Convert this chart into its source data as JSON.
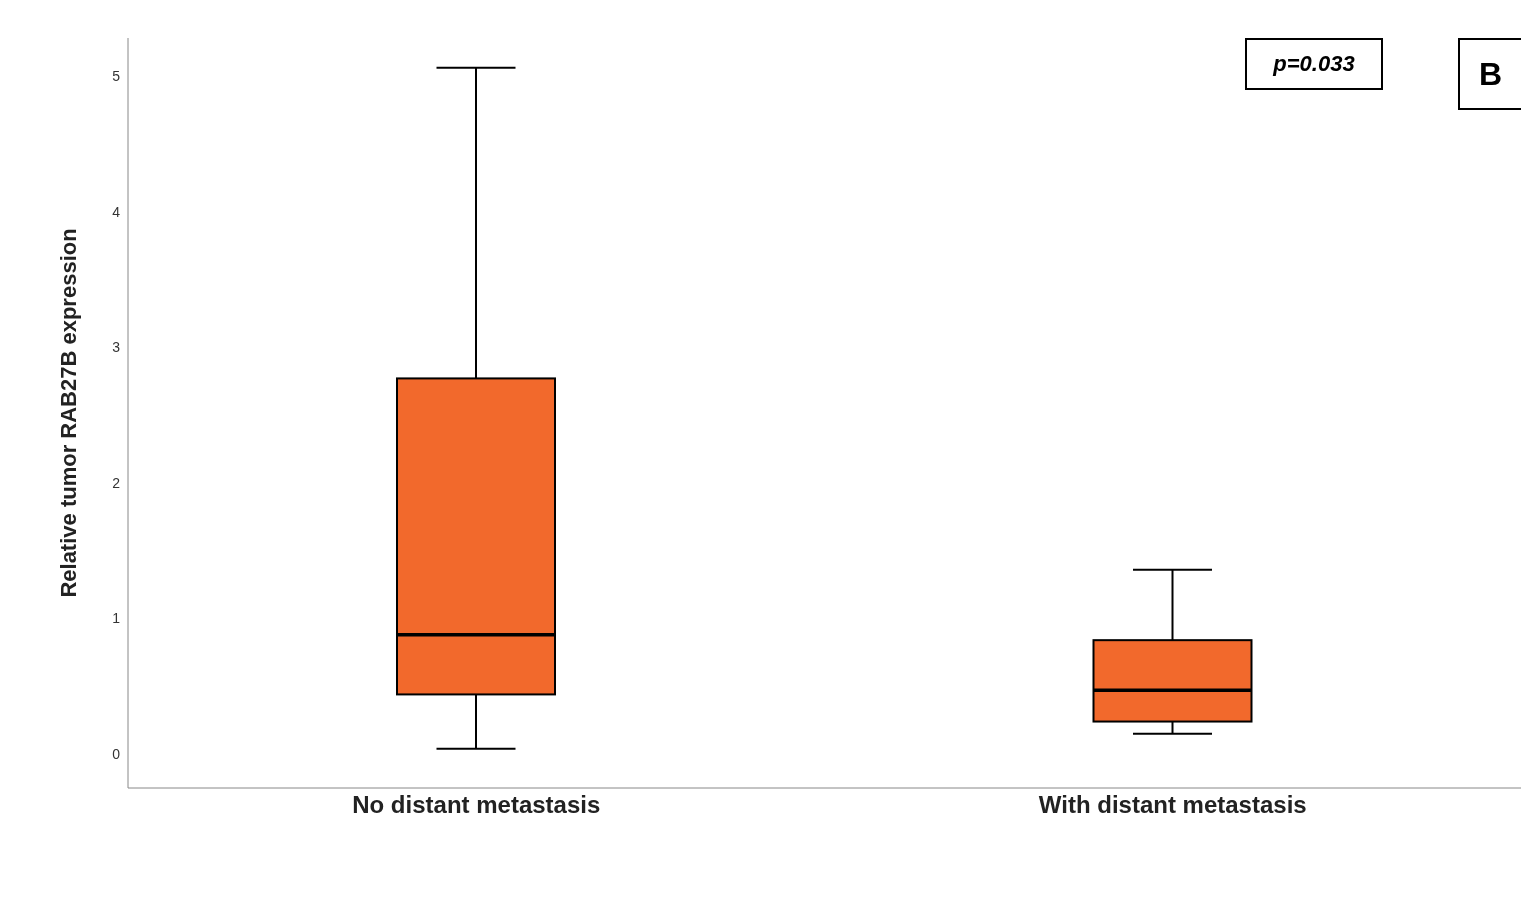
{
  "chart_data": {
    "type": "box",
    "ylabel": "Relative tumor RAB27B expression",
    "categories": [
      "No distant metastasis",
      "With distant metastasis"
    ],
    "color": "#f2692c",
    "boxes": [
      {
        "low": 0.04,
        "q1": 0.44,
        "median": 0.88,
        "q3": 2.77,
        "high": 5.06
      },
      {
        "low": 0.15,
        "q1": 0.24,
        "median": 0.47,
        "q3": 0.84,
        "high": 1.36
      }
    ],
    "ylim": [
      -0.25,
      5.28
    ],
    "yticks": [
      0,
      1,
      2,
      3,
      4,
      5
    ],
    "grid": false,
    "annotations": [
      "p=0.033",
      "B"
    ]
  }
}
